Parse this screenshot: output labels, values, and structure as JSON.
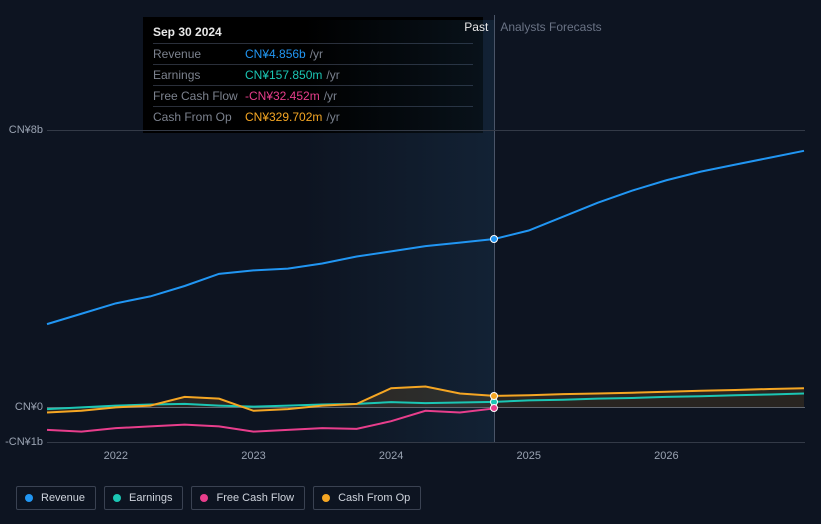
{
  "chart": {
    "type": "line",
    "background_color": "#0d1421",
    "grid_color": "#333a47",
    "label_color": "#9aa3b2",
    "x_domain": [
      2021.5,
      2027.0
    ],
    "y_domain": [
      -1,
      8
    ],
    "y_ticks": [
      {
        "v": 8,
        "label": "CN¥8b"
      },
      {
        "v": 0,
        "label": "CN¥0"
      },
      {
        "v": -1,
        "label": "-CN¥1b"
      }
    ],
    "x_ticks": [
      {
        "v": 2022,
        "label": "2022"
      },
      {
        "v": 2023,
        "label": "2023"
      },
      {
        "v": 2024,
        "label": "2024"
      },
      {
        "v": 2025,
        "label": "2025"
      },
      {
        "v": 2026,
        "label": "2026"
      }
    ],
    "divider_x": 2024.75,
    "regions": {
      "past": "Past",
      "forecast": "Analysts Forecasts"
    },
    "series": [
      {
        "id": "revenue",
        "label": "Revenue",
        "color": "#2196f3",
        "width": 2,
        "points": [
          [
            2021.5,
            2.4
          ],
          [
            2021.75,
            2.7
          ],
          [
            2022,
            3.0
          ],
          [
            2022.25,
            3.2
          ],
          [
            2022.5,
            3.5
          ],
          [
            2022.75,
            3.85
          ],
          [
            2023,
            3.95
          ],
          [
            2023.25,
            4.0
          ],
          [
            2023.5,
            4.15
          ],
          [
            2023.75,
            4.35
          ],
          [
            2024,
            4.5
          ],
          [
            2024.25,
            4.65
          ],
          [
            2024.5,
            4.75
          ],
          [
            2024.75,
            4.856
          ],
          [
            2025,
            5.1
          ],
          [
            2025.25,
            5.5
          ],
          [
            2025.5,
            5.9
          ],
          [
            2025.75,
            6.25
          ],
          [
            2026,
            6.55
          ],
          [
            2026.25,
            6.8
          ],
          [
            2026.5,
            7.0
          ],
          [
            2026.75,
            7.2
          ],
          [
            2027,
            7.4
          ]
        ]
      },
      {
        "id": "earnings",
        "label": "Earnings",
        "color": "#1bc6b4",
        "width": 2,
        "points": [
          [
            2021.5,
            -0.05
          ],
          [
            2021.75,
            0.0
          ],
          [
            2022,
            0.05
          ],
          [
            2022.25,
            0.08
          ],
          [
            2022.5,
            0.1
          ],
          [
            2022.75,
            0.05
          ],
          [
            2023,
            0.02
          ],
          [
            2023.25,
            0.05
          ],
          [
            2023.5,
            0.08
          ],
          [
            2023.75,
            0.1
          ],
          [
            2024,
            0.15
          ],
          [
            2024.25,
            0.12
          ],
          [
            2024.5,
            0.14
          ],
          [
            2024.75,
            0.158
          ],
          [
            2025,
            0.2
          ],
          [
            2025.25,
            0.22
          ],
          [
            2025.5,
            0.25
          ],
          [
            2025.75,
            0.27
          ],
          [
            2026,
            0.3
          ],
          [
            2026.25,
            0.32
          ],
          [
            2026.5,
            0.35
          ],
          [
            2026.75,
            0.37
          ],
          [
            2027,
            0.4
          ]
        ]
      },
      {
        "id": "fcf",
        "label": "Free Cash Flow",
        "color": "#e83e8c",
        "width": 2,
        "points": [
          [
            2021.5,
            -0.65
          ],
          [
            2021.75,
            -0.7
          ],
          [
            2022,
            -0.6
          ],
          [
            2022.25,
            -0.55
          ],
          [
            2022.5,
            -0.5
          ],
          [
            2022.75,
            -0.55
          ],
          [
            2023,
            -0.7
          ],
          [
            2023.25,
            -0.65
          ],
          [
            2023.5,
            -0.6
          ],
          [
            2023.75,
            -0.62
          ],
          [
            2024,
            -0.4
          ],
          [
            2024.25,
            -0.1
          ],
          [
            2024.5,
            -0.15
          ],
          [
            2024.75,
            -0.032
          ]
        ]
      },
      {
        "id": "cfo",
        "label": "Cash From Op",
        "color": "#f5a623",
        "width": 2,
        "points": [
          [
            2021.5,
            -0.15
          ],
          [
            2021.75,
            -0.1
          ],
          [
            2022,
            0.0
          ],
          [
            2022.25,
            0.05
          ],
          [
            2022.5,
            0.3
          ],
          [
            2022.75,
            0.25
          ],
          [
            2023,
            -0.1
          ],
          [
            2023.25,
            -0.05
          ],
          [
            2023.5,
            0.05
          ],
          [
            2023.75,
            0.1
          ],
          [
            2024,
            0.55
          ],
          [
            2024.25,
            0.6
          ],
          [
            2024.5,
            0.4
          ],
          [
            2024.75,
            0.33
          ],
          [
            2025,
            0.35
          ],
          [
            2025.25,
            0.38
          ],
          [
            2025.5,
            0.4
          ],
          [
            2025.75,
            0.42
          ],
          [
            2026,
            0.45
          ],
          [
            2026.25,
            0.48
          ],
          [
            2026.5,
            0.5
          ],
          [
            2026.75,
            0.53
          ],
          [
            2027,
            0.55
          ]
        ]
      }
    ],
    "zero_line_color": "#5a6272"
  },
  "tooltip": {
    "date": "Sep 30 2024",
    "rows": [
      {
        "label": "Revenue",
        "value": "CN¥4.856b",
        "suffix": "/yr",
        "color": "#2196f3"
      },
      {
        "label": "Earnings",
        "value": "CN¥157.850m",
        "suffix": "/yr",
        "color": "#1bc6b4"
      },
      {
        "label": "Free Cash Flow",
        "value": "-CN¥32.452m",
        "suffix": "/yr",
        "color": "#e83e8c"
      },
      {
        "label": "Cash From Op",
        "value": "CN¥329.702m",
        "suffix": "/yr",
        "color": "#f5a623"
      }
    ]
  },
  "legend": [
    {
      "id": "revenue",
      "label": "Revenue",
      "color": "#2196f3"
    },
    {
      "id": "earnings",
      "label": "Earnings",
      "color": "#1bc6b4"
    },
    {
      "id": "fcf",
      "label": "Free Cash Flow",
      "color": "#e83e8c"
    },
    {
      "id": "cfo",
      "label": "Cash From Op",
      "color": "#f5a623"
    }
  ],
  "markers_x": 2024.75
}
